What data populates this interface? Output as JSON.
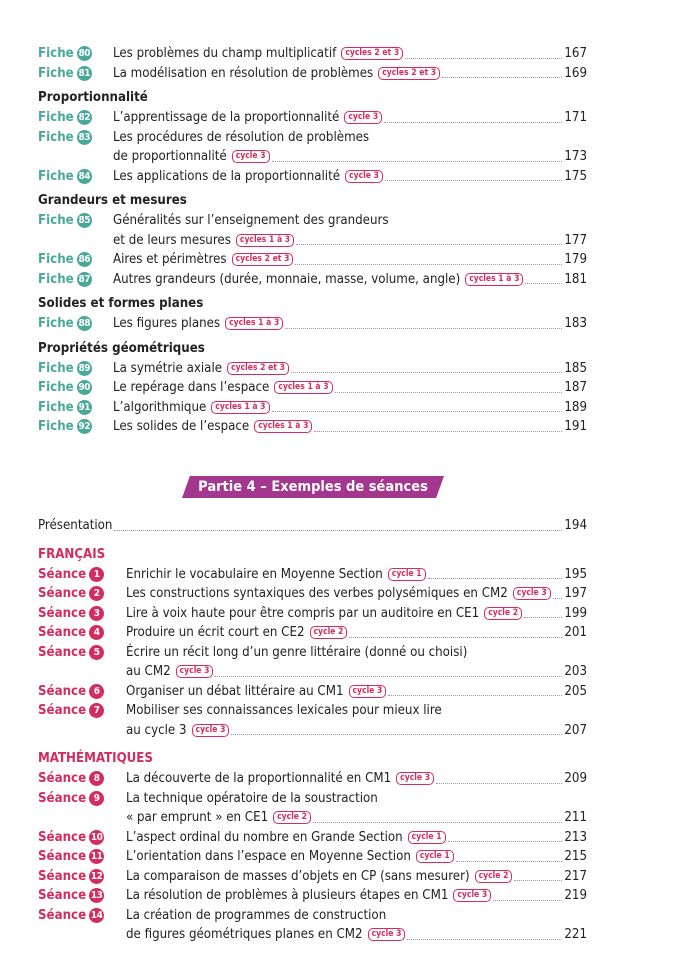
{
  "colors": {
    "fiche": "#4aa89a",
    "seance": "#d42c5e",
    "banner": "#a3378d"
  },
  "part1": [
    {
      "type": "entry",
      "kind": "fiche",
      "label": "Fiche",
      "num": "80",
      "lines": [
        "Les problèmes du champ multiplicatif"
      ],
      "badge": "cycles 2 et 3",
      "page": "167"
    },
    {
      "type": "entry",
      "kind": "fiche",
      "label": "Fiche",
      "num": "81",
      "lines": [
        "La modélisation en résolution de problèmes"
      ],
      "badge": "cycles 2 et 3",
      "page": "169"
    },
    {
      "type": "heading",
      "text": "Proportionnalité"
    },
    {
      "type": "entry",
      "kind": "fiche",
      "label": "Fiche",
      "num": "82",
      "lines": [
        "L’apprentissage de la proportionnalité"
      ],
      "badge": "cycle 3",
      "page": "171"
    },
    {
      "type": "entry",
      "kind": "fiche",
      "label": "Fiche",
      "num": "83",
      "lines": [
        "Les procédures de résolution de problèmes",
        "de proportionnalité"
      ],
      "badge": "cycle 3",
      "page": "173"
    },
    {
      "type": "entry",
      "kind": "fiche",
      "label": "Fiche",
      "num": "84",
      "lines": [
        "Les applications de la proportionnalité"
      ],
      "badge": "cycle 3",
      "page": "175"
    },
    {
      "type": "heading",
      "text": "Grandeurs et mesures"
    },
    {
      "type": "entry",
      "kind": "fiche",
      "label": "Fiche",
      "num": "85",
      "lines": [
        "Généralités sur l’enseignement des grandeurs",
        "et de leurs mesures"
      ],
      "badge": "cycles 1 à 3",
      "page": "177"
    },
    {
      "type": "entry",
      "kind": "fiche",
      "label": "Fiche",
      "num": "86",
      "lines": [
        "Aires et périmètres"
      ],
      "badge": "cycles 2 et 3",
      "page": "179"
    },
    {
      "type": "entry",
      "kind": "fiche",
      "label": "Fiche",
      "num": "87",
      "lines": [
        "Autres grandeurs (durée, monnaie, masse, volume, angle)"
      ],
      "badge": "cycles 1 à 3",
      "page": "181"
    },
    {
      "type": "heading",
      "text": "Solides et formes planes"
    },
    {
      "type": "entry",
      "kind": "fiche",
      "label": "Fiche",
      "num": "88",
      "lines": [
        "Les figures planes"
      ],
      "badge": "cycles 1 à 3",
      "page": "183"
    },
    {
      "type": "heading",
      "text": "Propriétés géométriques"
    },
    {
      "type": "entry",
      "kind": "fiche",
      "label": "Fiche",
      "num": "89",
      "lines": [
        "La symétrie axiale"
      ],
      "badge": "cycles 2 et 3",
      "page": "185"
    },
    {
      "type": "entry",
      "kind": "fiche",
      "label": "Fiche",
      "num": "90",
      "lines": [
        "Le repérage dans l’espace"
      ],
      "badge": "cycles 1 à 3",
      "page": "187"
    },
    {
      "type": "entry",
      "kind": "fiche",
      "label": "Fiche",
      "num": "91",
      "lines": [
        "L’algorithmique"
      ],
      "badge": "cycles 1 à 3",
      "page": "189"
    },
    {
      "type": "entry",
      "kind": "fiche",
      "label": "Fiche",
      "num": "92",
      "lines": [
        "Les solides de l’espace"
      ],
      "badge": "cycles 1 à 3",
      "page": "191"
    }
  ],
  "banner": "Partie 4 – Exemples de séances",
  "part2": [
    {
      "type": "entry",
      "kind": "plain",
      "lines": [
        "Présentation"
      ],
      "page": "194"
    },
    {
      "type": "heading",
      "red": true,
      "text": "FRANÇAIS"
    },
    {
      "type": "entry",
      "kind": "seance",
      "label": "Séance",
      "num": "1",
      "lines": [
        "Enrichir le vocabulaire en Moyenne Section"
      ],
      "badge": "cycle 1",
      "page": "195"
    },
    {
      "type": "entry",
      "kind": "seance",
      "label": "Séance",
      "num": "2",
      "lines": [
        "Les constructions syntaxiques des verbes polysémiques en CM2"
      ],
      "badge": "cycle 3",
      "page": "197"
    },
    {
      "type": "entry",
      "kind": "seance",
      "label": "Séance",
      "num": "3",
      "lines": [
        "Lire à voix haute pour être compris par un auditoire en CE1"
      ],
      "badge": "cycle 2",
      "page": "199"
    },
    {
      "type": "entry",
      "kind": "seance",
      "label": "Séance",
      "num": "4",
      "lines": [
        "Produire un écrit court en CE2"
      ],
      "badge": "cycle 2",
      "page": "201"
    },
    {
      "type": "entry",
      "kind": "seance",
      "label": "Séance",
      "num": "5",
      "lines": [
        "Écrire un récit long d’un genre littéraire (donné ou choisi)",
        "au CM2"
      ],
      "badge": "cycle 3",
      "page": "203"
    },
    {
      "type": "entry",
      "kind": "seance",
      "label": "Séance",
      "num": "6",
      "lines": [
        "Organiser un débat littéraire au CM1"
      ],
      "badge": "cycle 3",
      "page": "205"
    },
    {
      "type": "entry",
      "kind": "seance",
      "label": "Séance",
      "num": "7",
      "lines": [
        "Mobiliser ses connaissances lexicales pour mieux lire",
        "au cycle 3"
      ],
      "badge": "cycle 3",
      "page": "207"
    },
    {
      "type": "heading",
      "red": true,
      "text": "MATHÉMATIQUES"
    },
    {
      "type": "entry",
      "kind": "seance",
      "label": "Séance",
      "num": "8",
      "lines": [
        "La découverte de la proportionnalité en CM1"
      ],
      "badge": "cycle 3",
      "page": "209"
    },
    {
      "type": "entry",
      "kind": "seance",
      "label": "Séance",
      "num": "9",
      "lines": [
        "La technique opératoire de la soustraction",
        "« par emprunt » en CE1"
      ],
      "badge": "cycle 2",
      "page": "211"
    },
    {
      "type": "entry",
      "kind": "seance",
      "label": "Séance",
      "num": "10",
      "lines": [
        "L’aspect ordinal du nombre en Grande Section"
      ],
      "badge": "cycle 1",
      "page": "213"
    },
    {
      "type": "entry",
      "kind": "seance",
      "label": "Séance",
      "num": "11",
      "lines": [
        "L’orientation dans l’espace en Moyenne Section"
      ],
      "badge": "cycle 1",
      "page": "215"
    },
    {
      "type": "entry",
      "kind": "seance",
      "label": "Séance",
      "num": "12",
      "lines": [
        "La comparaison de masses d’objets en CP (sans mesurer)"
      ],
      "badge": "cycle 2",
      "page": "217"
    },
    {
      "type": "entry",
      "kind": "seance",
      "label": "Séance",
      "num": "13",
      "lines": [
        "La résolution de problèmes à plusieurs étapes en CM1"
      ],
      "badge": "cycle 3",
      "page": "219"
    },
    {
      "type": "entry",
      "kind": "seance",
      "label": "Séance",
      "num": "14",
      "lines": [
        "La création de programmes de construction",
        "de figures géométriques planes en CM2"
      ],
      "badge": "cycle 3",
      "page": "221"
    }
  ]
}
